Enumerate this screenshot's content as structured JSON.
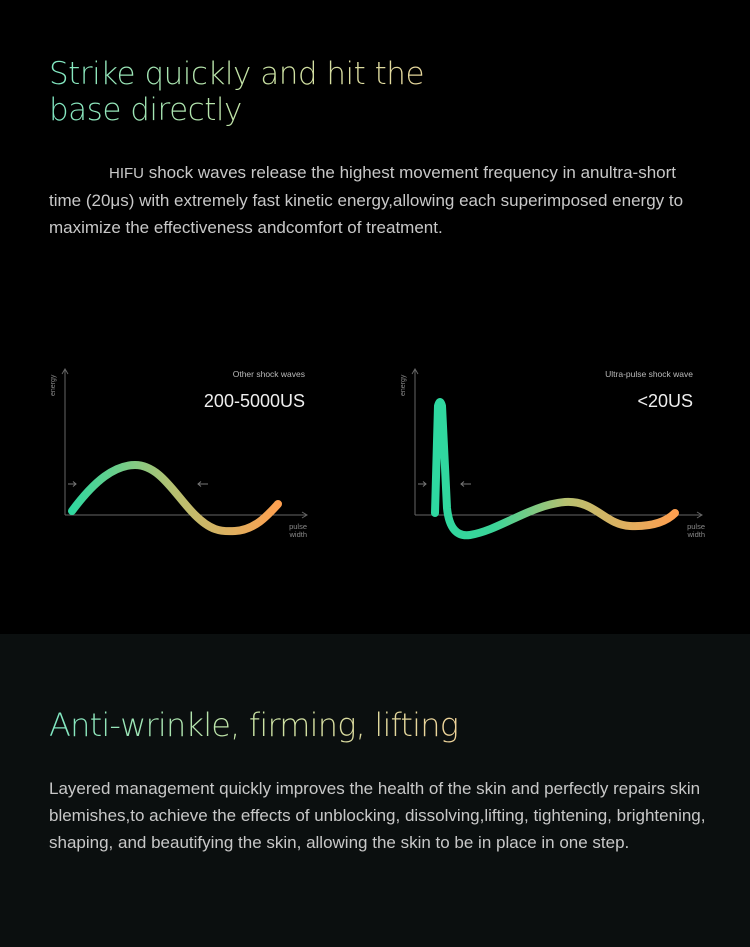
{
  "section1": {
    "title": "Strike quickly and hit the base directly",
    "paragraph_lead": "HIFU",
    "paragraph": " shock waves release the highest movement frequency in anultra-short time (20μs) with extremely fast kinetic energy,allowing each superimposed energy to maximize the effectiveness andcomfort of treatment."
  },
  "charts": [
    {
      "caption": "Other shock waves",
      "value": "200-5000US",
      "y_label": "energy",
      "x_label_1": "pulse",
      "x_label_2": "width"
    },
    {
      "caption": "Ultra-pulse shock wave",
      "value": "<20US",
      "y_label": "energy",
      "x_label_1": "pulse",
      "x_label_2": "width"
    }
  ],
  "colors": {
    "curve_start": "#2ed8a0",
    "curve_mid": "#b8c070",
    "curve_end": "#ffa050",
    "title_start": "#7fe8c3",
    "title_end": "#f0d49a"
  },
  "section2": {
    "title": "Anti-wrinkle, firming, lifting",
    "paragraph": "Layered management quickly improves the health of the skin and perfectly repairs skin blemishes,to achieve the effects of unblocking, dissolving,lifting, tightening, brightening, shaping, and beautifying the skin, allowing the skin to be in place in one step."
  }
}
